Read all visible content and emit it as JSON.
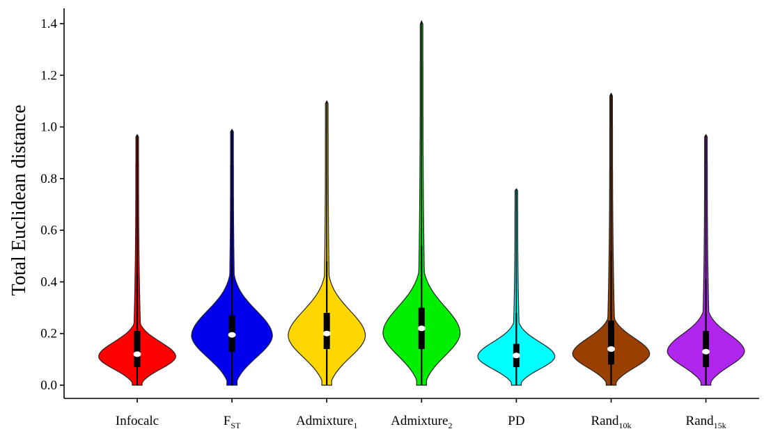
{
  "chart_data": {
    "type": "violin",
    "title": "",
    "ylabel": "Total Euclidean distance",
    "xlabel": "",
    "ylim": [
      0,
      1.45
    ],
    "yticks": [
      "0.0",
      "0.2",
      "0.4",
      "0.6",
      "0.8",
      "1.0",
      "1.2",
      "1.4"
    ],
    "series": [
      {
        "base": "Infocalc",
        "sub": "",
        "color": "#ff0000",
        "max": 0.97,
        "whisker_low": 0.0,
        "whisker_high": 0.43,
        "q1": 0.07,
        "q3": 0.21,
        "median": 0.12,
        "mode": 0.11,
        "peak_width": 0.21
      },
      {
        "base": "F",
        "sub": "ST",
        "color": "#0000ee",
        "max": 0.99,
        "whisker_low": 0.0,
        "whisker_high": 0.47,
        "q1": 0.13,
        "q3": 0.27,
        "median": 0.195,
        "mode": 0.19,
        "peak_width": 0.22
      },
      {
        "base": "Admixture",
        "sub": "1",
        "color": "#ffd700",
        "max": 1.1,
        "whisker_low": 0.0,
        "whisker_high": 0.48,
        "q1": 0.14,
        "q3": 0.28,
        "median": 0.2,
        "mode": 0.19,
        "peak_width": 0.21
      },
      {
        "base": "Admixture",
        "sub": "2",
        "color": "#00ee00",
        "max": 1.41,
        "whisker_low": 0.0,
        "whisker_high": 0.54,
        "q1": 0.14,
        "q3": 0.3,
        "median": 0.22,
        "mode": 0.2,
        "peak_width": 0.21
      },
      {
        "base": "PD",
        "sub": "",
        "color": "#00ffff",
        "max": 0.76,
        "whisker_low": 0.0,
        "whisker_high": 0.28,
        "q1": 0.07,
        "q3": 0.16,
        "median": 0.115,
        "mode": 0.11,
        "peak_width": 0.21
      },
      {
        "base": "Rand",
        "sub": "10k",
        "color": "#994000",
        "max": 1.13,
        "whisker_low": 0.0,
        "whisker_high": 0.52,
        "q1": 0.08,
        "q3": 0.25,
        "median": 0.14,
        "mode": 0.12,
        "peak_width": 0.21
      },
      {
        "base": "Rand",
        "sub": "15k",
        "color": "#b026ee",
        "max": 0.97,
        "whisker_low": 0.0,
        "whisker_high": 0.41,
        "q1": 0.07,
        "q3": 0.21,
        "median": 0.13,
        "mode": 0.13,
        "peak_width": 0.21
      }
    ],
    "grid": false,
    "legend": "none"
  }
}
